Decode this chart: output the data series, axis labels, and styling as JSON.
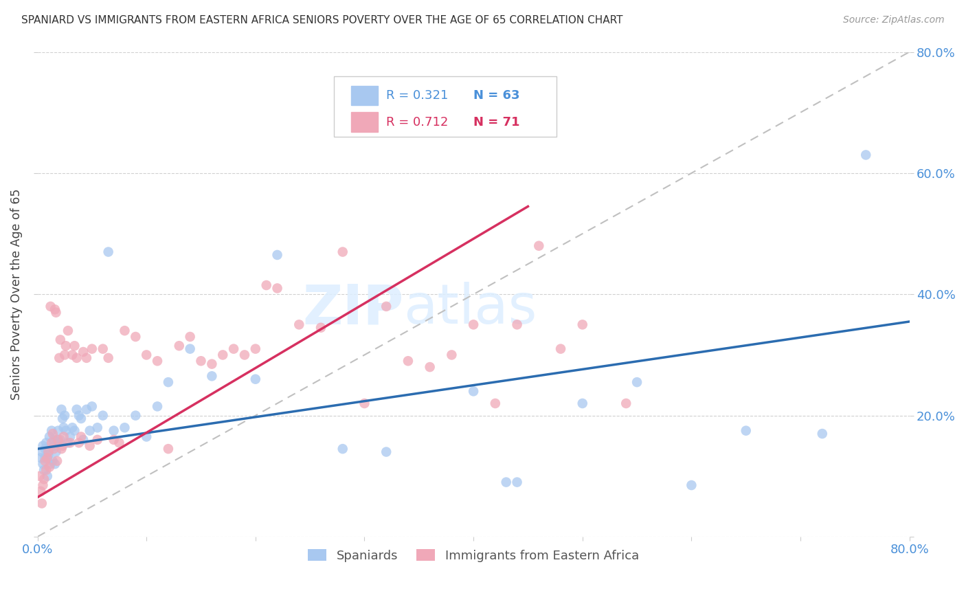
{
  "title": "SPANIARD VS IMMIGRANTS FROM EASTERN AFRICA SENIORS POVERTY OVER THE AGE OF 65 CORRELATION CHART",
  "source": "Source: ZipAtlas.com",
  "ylabel": "Seniors Poverty Over the Age of 65",
  "legend_label1": "Spaniards",
  "legend_label2": "Immigrants from Eastern Africa",
  "R1": "0.321",
  "N1": "63",
  "R2": "0.712",
  "N2": "71",
  "color1": "#a8c8f0",
  "color2": "#f0a8b8",
  "line_color1": "#2b6cb0",
  "line_color2": "#d63060",
  "diagonal_color": "#c0c0c0",
  "xlim": [
    0.0,
    0.8
  ],
  "ylim": [
    0.0,
    0.8
  ],
  "spaniards_x": [
    0.003,
    0.004,
    0.005,
    0.005,
    0.006,
    0.007,
    0.007,
    0.008,
    0.009,
    0.01,
    0.01,
    0.011,
    0.012,
    0.013,
    0.014,
    0.015,
    0.015,
    0.016,
    0.017,
    0.018,
    0.019,
    0.02,
    0.021,
    0.022,
    0.023,
    0.024,
    0.025,
    0.026,
    0.028,
    0.03,
    0.032,
    0.034,
    0.036,
    0.038,
    0.04,
    0.042,
    0.045,
    0.048,
    0.05,
    0.055,
    0.06,
    0.065,
    0.07,
    0.08,
    0.09,
    0.1,
    0.11,
    0.12,
    0.14,
    0.16,
    0.2,
    0.22,
    0.28,
    0.32,
    0.4,
    0.43,
    0.44,
    0.5,
    0.55,
    0.6,
    0.65,
    0.72,
    0.76
  ],
  "spaniards_y": [
    0.13,
    0.14,
    0.12,
    0.15,
    0.11,
    0.13,
    0.145,
    0.155,
    0.1,
    0.14,
    0.135,
    0.165,
    0.12,
    0.175,
    0.125,
    0.15,
    0.16,
    0.12,
    0.14,
    0.16,
    0.175,
    0.155,
    0.16,
    0.21,
    0.195,
    0.18,
    0.2,
    0.175,
    0.155,
    0.165,
    0.18,
    0.175,
    0.21,
    0.2,
    0.195,
    0.16,
    0.21,
    0.175,
    0.215,
    0.18,
    0.2,
    0.47,
    0.175,
    0.18,
    0.2,
    0.165,
    0.215,
    0.255,
    0.31,
    0.265,
    0.26,
    0.465,
    0.145,
    0.14,
    0.24,
    0.09,
    0.09,
    0.22,
    0.255,
    0.085,
    0.175,
    0.17,
    0.63
  ],
  "immigrants_x": [
    0.002,
    0.003,
    0.004,
    0.005,
    0.006,
    0.007,
    0.008,
    0.009,
    0.01,
    0.011,
    0.012,
    0.013,
    0.014,
    0.015,
    0.016,
    0.017,
    0.018,
    0.019,
    0.02,
    0.021,
    0.022,
    0.023,
    0.024,
    0.025,
    0.026,
    0.028,
    0.03,
    0.032,
    0.034,
    0.036,
    0.038,
    0.04,
    0.042,
    0.045,
    0.048,
    0.05,
    0.055,
    0.06,
    0.065,
    0.07,
    0.075,
    0.08,
    0.09,
    0.1,
    0.11,
    0.12,
    0.13,
    0.14,
    0.15,
    0.16,
    0.17,
    0.18,
    0.19,
    0.2,
    0.21,
    0.22,
    0.24,
    0.26,
    0.28,
    0.3,
    0.32,
    0.34,
    0.36,
    0.38,
    0.4,
    0.42,
    0.44,
    0.46,
    0.48,
    0.5,
    0.54
  ],
  "immigrants_y": [
    0.1,
    0.075,
    0.055,
    0.085,
    0.095,
    0.125,
    0.11,
    0.13,
    0.14,
    0.115,
    0.38,
    0.155,
    0.17,
    0.145,
    0.375,
    0.37,
    0.125,
    0.16,
    0.295,
    0.325,
    0.145,
    0.15,
    0.165,
    0.3,
    0.315,
    0.34,
    0.155,
    0.3,
    0.315,
    0.295,
    0.155,
    0.165,
    0.305,
    0.295,
    0.15,
    0.31,
    0.16,
    0.31,
    0.295,
    0.16,
    0.155,
    0.34,
    0.33,
    0.3,
    0.29,
    0.145,
    0.315,
    0.33,
    0.29,
    0.285,
    0.3,
    0.31,
    0.3,
    0.31,
    0.415,
    0.41,
    0.35,
    0.345,
    0.47,
    0.22,
    0.38,
    0.29,
    0.28,
    0.3,
    0.35,
    0.22,
    0.35,
    0.48,
    0.31,
    0.35,
    0.22
  ],
  "blue_line_x": [
    0.0,
    0.8
  ],
  "blue_line_y": [
    0.145,
    0.355
  ],
  "pink_line_x": [
    0.0,
    0.45
  ],
  "pink_line_y": [
    0.065,
    0.545
  ]
}
